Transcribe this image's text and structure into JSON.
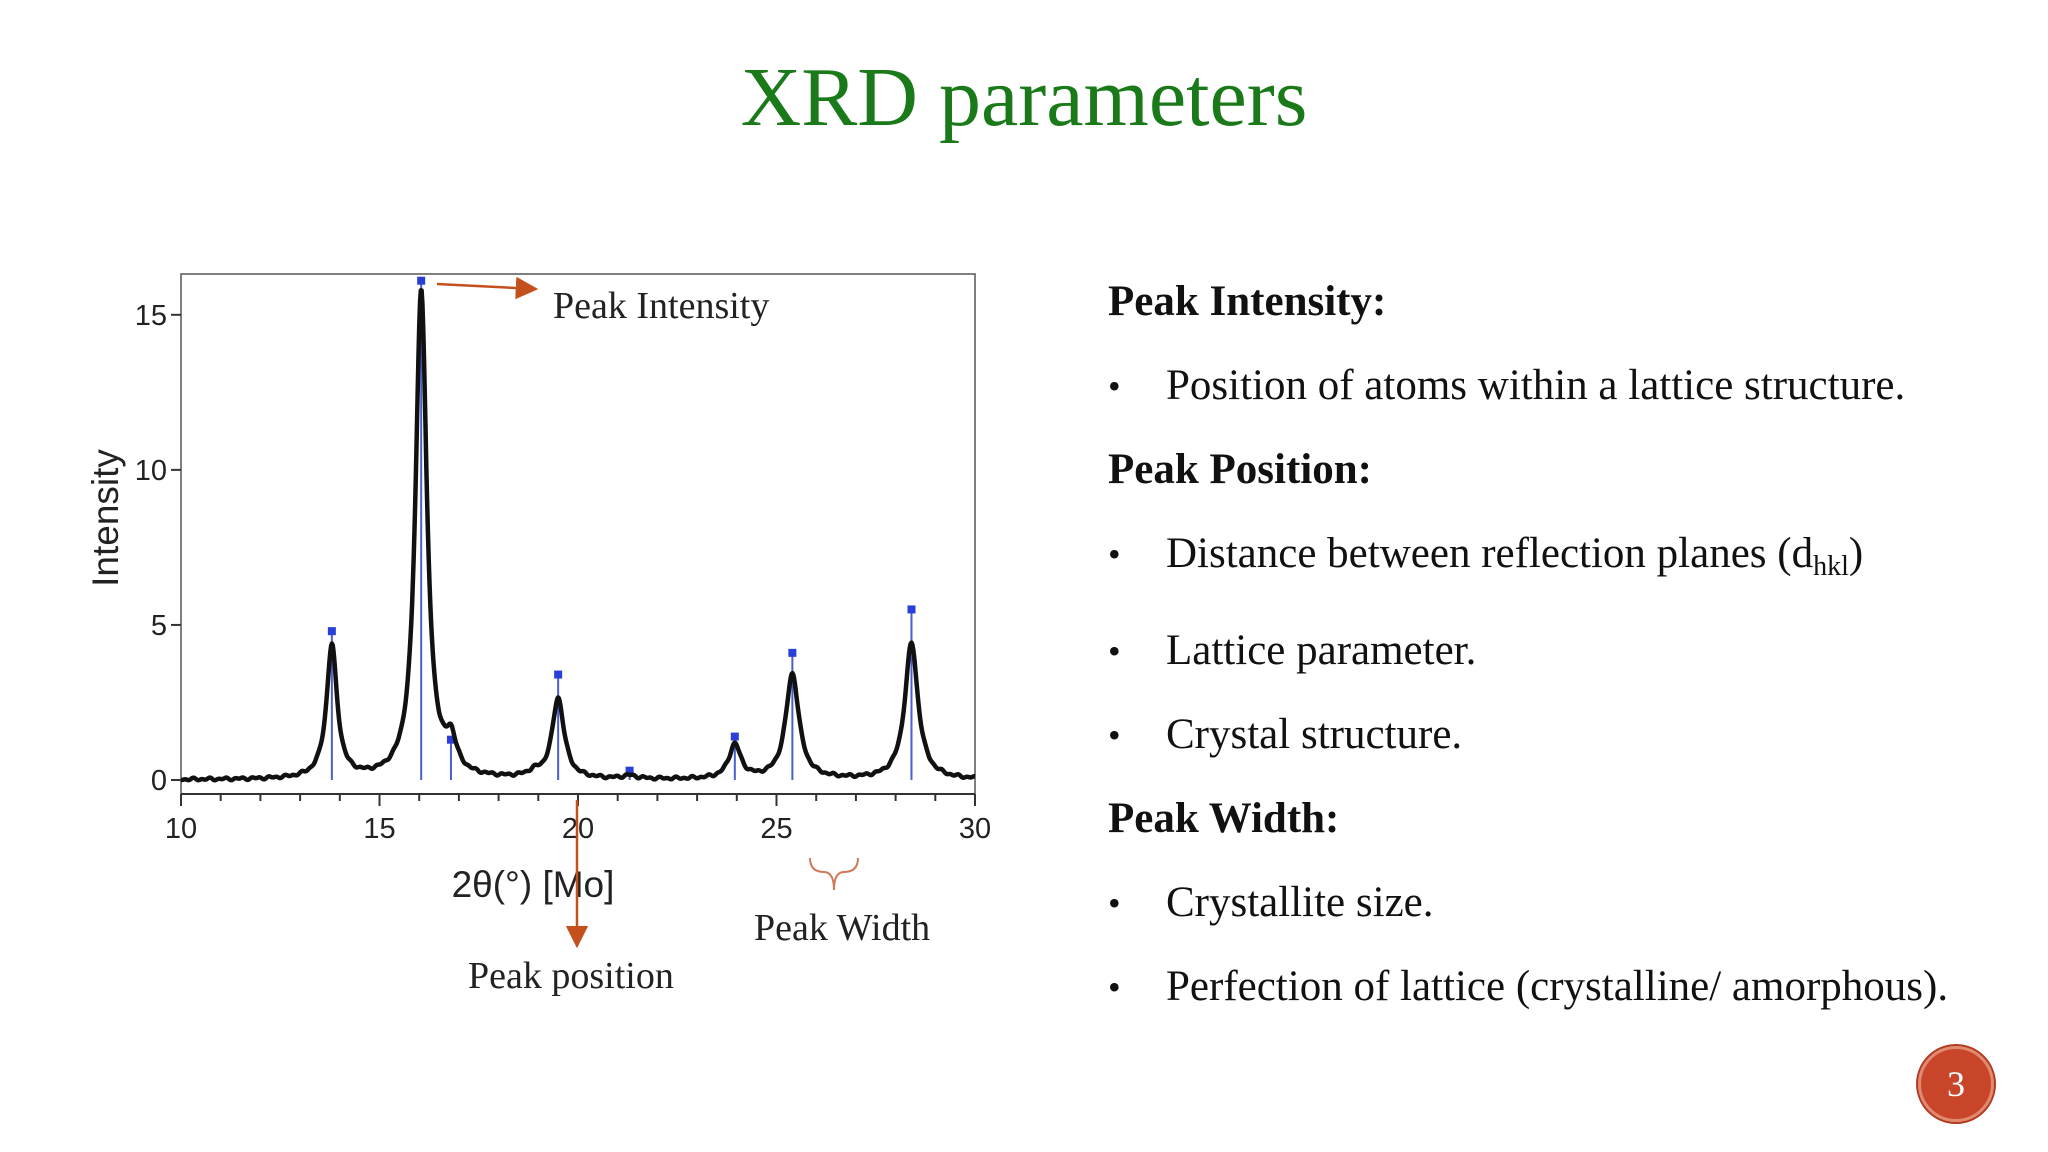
{
  "slide": {
    "title": "XRD parameters",
    "page_number": "3"
  },
  "chart_data": {
    "type": "line",
    "xlabel": "2θ(°) [Mo]",
    "ylabel": "Intensity",
    "xlim": [
      10,
      30
    ],
    "ylim": [
      -0.5,
      16.5
    ],
    "x_ticks": [
      "10",
      "15",
      "20",
      "25",
      "30"
    ],
    "y_ticks": [
      "0",
      "5",
      "10",
      "15"
    ],
    "grid": false,
    "series": [
      {
        "peaks": [
          {
            "x": 13.8,
            "y": 4.3,
            "w": 0.16
          },
          {
            "x": 16.05,
            "y": 15.8,
            "w": 0.17
          },
          {
            "x": 16.8,
            "y": 1.0,
            "w": 0.16
          },
          {
            "x": 18.9,
            "y": 0.15,
            "w": 0.2
          },
          {
            "x": 19.5,
            "y": 2.6,
            "w": 0.18
          },
          {
            "x": 21.3,
            "y": 0.1,
            "w": 0.2
          },
          {
            "x": 23.95,
            "y": 1.1,
            "w": 0.18
          },
          {
            "x": 25.4,
            "y": 3.4,
            "w": 0.2
          },
          {
            "x": 28.4,
            "y": 4.4,
            "w": 0.2
          }
        ]
      }
    ],
    "reflections": [
      {
        "x": 13.8,
        "y": 4.8
      },
      {
        "x": 16.05,
        "y": 16.1
      },
      {
        "x": 16.8,
        "y": 1.3
      },
      {
        "x": 19.5,
        "y": 3.4
      },
      {
        "x": 21.3,
        "y": 0.3
      },
      {
        "x": 23.95,
        "y": 1.4
      },
      {
        "x": 25.4,
        "y": 4.1
      },
      {
        "x": 28.4,
        "y": 5.5
      }
    ],
    "annotations": [
      {
        "text": "Peak Intensity"
      },
      {
        "text": "Peak position"
      },
      {
        "text": "Peak Width"
      }
    ],
    "colors": {
      "trace": "#111111",
      "reflection_line": "#4a5fc8",
      "reflection_marker": "#2a3fd8",
      "arrow": "#c4501e",
      "brace": "#d07a55"
    }
  },
  "notes": {
    "sections": [
      {
        "heading": "Peak Intensity:",
        "bullets": [
          "Position of atoms within a lattice structure."
        ]
      },
      {
        "heading": "Peak Position:",
        "bullets": [
          {
            "text": "Distance between reflection planes (d",
            "sub": "hkl",
            "after": ")"
          },
          "Lattice parameter.",
          "Crystal structure."
        ]
      },
      {
        "heading": "Peak Width:",
        "bullets": [
          "Crystallite size.",
          "Perfection of lattice (crystalline/ amorphous)."
        ]
      }
    ]
  }
}
